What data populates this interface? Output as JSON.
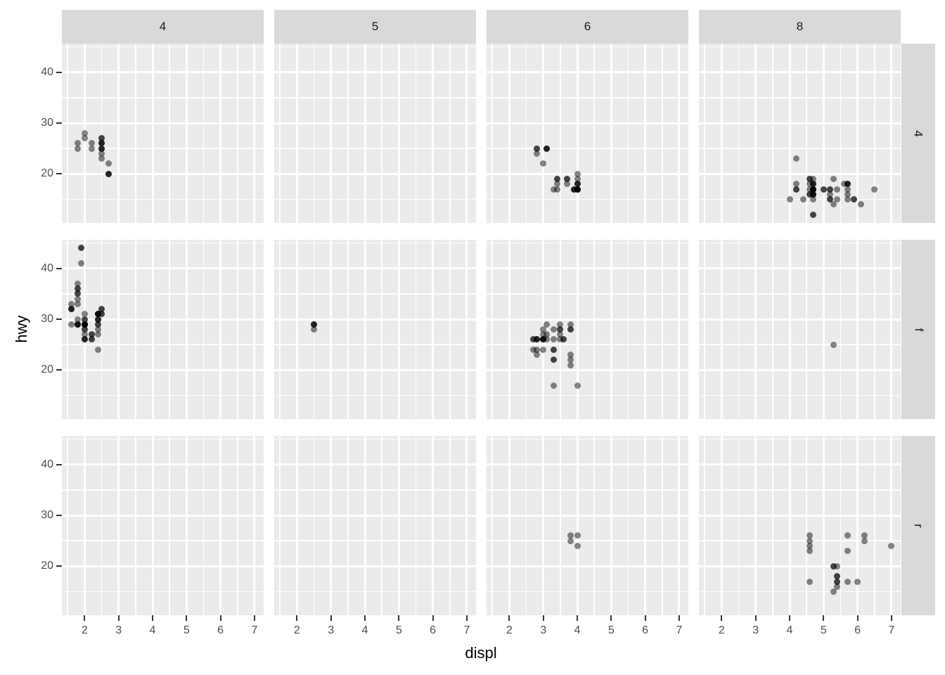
{
  "chart_data": {
    "type": "scatter",
    "title": "",
    "xlabel": "displ",
    "ylabel": "hwy",
    "facet_type": "grid",
    "col_strip_labels": [
      "4",
      "5",
      "6",
      "8"
    ],
    "row_strip_labels": [
      "4",
      "f",
      "r"
    ],
    "x_ticks": [
      2,
      3,
      4,
      5,
      6,
      7
    ],
    "y_ticks": [
      20,
      30,
      40
    ],
    "x_minor_gridlines": [
      1.5,
      2.5,
      3.5,
      4.5,
      5.5,
      6.5
    ],
    "y_minor_gridlines": [
      15,
      25,
      35,
      45
    ],
    "xlim": [
      1.33,
      7.27
    ],
    "ylim": [
      10.4,
      45.6
    ],
    "grid": "white major and minor gridlines on gray panel",
    "legend": "none",
    "panels": [
      {
        "col": "4",
        "row": "4",
        "points": [
          [
            1.8,
            26
          ],
          [
            1.8,
            25
          ],
          [
            2.0,
            28
          ],
          [
            2.0,
            27
          ],
          [
            2.2,
            26
          ],
          [
            2.2,
            25
          ],
          [
            2.5,
            26
          ],
          [
            2.5,
            24
          ],
          [
            2.5,
            26
          ],
          [
            2.5,
            23
          ],
          [
            2.5,
            25
          ],
          [
            2.5,
            27
          ],
          [
            2.5,
            25
          ],
          [
            2.5,
            27
          ],
          [
            2.5,
            25
          ],
          [
            2.5,
            26
          ],
          [
            2.7,
            20
          ],
          [
            2.7,
            20
          ],
          [
            2.7,
            20
          ],
          [
            2.7,
            22
          ]
        ]
      },
      {
        "col": "5",
        "row": "4",
        "points": []
      },
      {
        "col": "6",
        "row": "4",
        "points": [
          [
            2.8,
            25
          ],
          [
            2.8,
            25
          ],
          [
            3.1,
            25
          ],
          [
            3.1,
            25
          ],
          [
            2.8,
            24
          ],
          [
            3.1,
            25
          ],
          [
            3.0,
            22
          ],
          [
            3.3,
            17
          ],
          [
            3.4,
            17
          ],
          [
            3.4,
            19
          ],
          [
            3.4,
            19
          ],
          [
            3.4,
            18
          ],
          [
            3.7,
            19
          ],
          [
            3.7,
            18
          ],
          [
            3.7,
            19
          ],
          [
            3.9,
            17
          ],
          [
            3.9,
            17
          ],
          [
            3.9,
            17
          ],
          [
            4.0,
            17
          ],
          [
            4.0,
            17
          ],
          [
            4.0,
            18
          ],
          [
            4.0,
            17
          ],
          [
            4.0,
            17
          ],
          [
            4.0,
            19
          ],
          [
            4.0,
            18
          ],
          [
            4.0,
            18
          ],
          [
            4.0,
            20
          ],
          [
            4.0,
            17
          ]
        ]
      },
      {
        "col": "8",
        "row": "4",
        "points": [
          [
            4.2,
            23
          ],
          [
            5.3,
            14
          ],
          [
            5.3,
            19
          ],
          [
            5.7,
            15
          ],
          [
            6.5,
            17
          ],
          [
            4.7,
            19
          ],
          [
            4.7,
            16
          ],
          [
            4.7,
            18
          ],
          [
            5.2,
            15
          ],
          [
            5.2,
            17
          ],
          [
            4.7,
            17
          ],
          [
            4.7,
            17
          ],
          [
            4.7,
            18
          ],
          [
            5.2,
            16
          ],
          [
            5.7,
            18
          ],
          [
            5.9,
            15
          ],
          [
            4.7,
            15
          ],
          [
            4.7,
            16
          ],
          [
            4.7,
            17
          ],
          [
            4.7,
            17
          ],
          [
            4.7,
            16
          ],
          [
            4.7,
            12
          ],
          [
            5.2,
            17
          ],
          [
            5.2,
            15
          ],
          [
            5.7,
            16
          ],
          [
            5.9,
            15
          ],
          [
            4.7,
            17
          ],
          [
            4.7,
            12
          ],
          [
            5.7,
            18
          ],
          [
            6.1,
            14
          ],
          [
            4.0,
            15
          ],
          [
            4.2,
            18
          ],
          [
            4.4,
            15
          ],
          [
            4.6,
            18
          ],
          [
            4.6,
            19
          ],
          [
            5.0,
            17
          ],
          [
            4.6,
            19
          ],
          [
            5.0,
            17
          ],
          [
            4.2,
            17
          ],
          [
            4.2,
            17
          ],
          [
            4.6,
            16
          ],
          [
            4.6,
            16
          ],
          [
            4.6,
            17
          ],
          [
            5.4,
            15
          ],
          [
            5.4,
            17
          ],
          [
            5.6,
            18
          ],
          [
            4.7,
            17
          ],
          [
            4.7,
            16
          ],
          [
            5.7,
            18
          ],
          [
            4.7,
            17
          ],
          [
            4.7,
            17
          ],
          [
            4.7,
            18
          ],
          [
            5.7,
            17
          ]
        ]
      },
      {
        "col": "4",
        "row": "f",
        "points": [
          [
            1.8,
            29
          ],
          [
            1.8,
            29
          ],
          [
            2.0,
            31
          ],
          [
            2.0,
            30
          ],
          [
            2.4,
            30
          ],
          [
            2.4,
            29
          ],
          [
            2.4,
            24
          ],
          [
            1.6,
            33
          ],
          [
            1.6,
            32
          ],
          [
            1.6,
            32
          ],
          [
            1.6,
            29
          ],
          [
            1.6,
            32
          ],
          [
            1.8,
            34
          ],
          [
            1.8,
            36
          ],
          [
            1.8,
            36
          ],
          [
            2.0,
            29
          ],
          [
            2.4,
            31
          ],
          [
            2.4,
            30
          ],
          [
            2.4,
            28
          ],
          [
            2.4,
            31
          ],
          [
            2.5,
            31
          ],
          [
            2.5,
            32
          ],
          [
            2.0,
            26
          ],
          [
            2.0,
            27
          ],
          [
            2.0,
            30
          ],
          [
            2.0,
            29
          ],
          [
            2.4,
            29
          ],
          [
            2.4,
            27
          ],
          [
            2.5,
            31
          ],
          [
            2.5,
            32
          ],
          [
            2.2,
            26
          ],
          [
            2.2,
            27
          ],
          [
            2.4,
            30
          ],
          [
            2.4,
            31
          ],
          [
            2.2,
            26
          ],
          [
            2.2,
            27
          ],
          [
            2.4,
            31
          ],
          [
            2.4,
            31
          ],
          [
            1.8,
            30
          ],
          [
            1.8,
            33
          ],
          [
            1.8,
            35
          ],
          [
            1.8,
            35
          ],
          [
            1.8,
            37
          ],
          [
            2.0,
            29
          ],
          [
            2.0,
            29
          ],
          [
            2.0,
            28
          ],
          [
            2.0,
            29
          ],
          [
            1.9,
            44
          ],
          [
            2.0,
            29
          ],
          [
            2.0,
            26
          ],
          [
            2.0,
            29
          ],
          [
            2.0,
            29
          ],
          [
            1.9,
            44
          ],
          [
            1.9,
            41
          ],
          [
            2.0,
            29
          ],
          [
            2.0,
            26
          ],
          [
            1.8,
            29
          ],
          [
            1.8,
            29
          ],
          [
            2.0,
            28
          ],
          [
            2.0,
            29
          ]
        ]
      },
      {
        "col": "5",
        "row": "f",
        "points": [
          [
            2.5,
            29
          ],
          [
            2.5,
            29
          ],
          [
            2.5,
            28
          ],
          [
            2.5,
            29
          ]
        ]
      },
      {
        "col": "6",
        "row": "f",
        "points": [
          [
            2.7,
            26
          ],
          [
            2.7,
            26
          ],
          [
            2.7,
            24
          ],
          [
            2.8,
            26
          ],
          [
            2.8,
            26
          ],
          [
            3.1,
            27
          ],
          [
            2.8,
            26
          ],
          [
            3.6,
            26
          ],
          [
            2.8,
            24
          ],
          [
            2.8,
            23
          ],
          [
            3.0,
            26
          ],
          [
            3.0,
            26
          ],
          [
            3.5,
            28
          ],
          [
            3.0,
            24
          ],
          [
            3.3,
            22
          ],
          [
            3.3,
            22
          ],
          [
            3.3,
            24
          ],
          [
            3.3,
            24
          ],
          [
            3.3,
            17
          ],
          [
            3.8,
            22
          ],
          [
            3.8,
            21
          ],
          [
            3.8,
            23
          ],
          [
            4.0,
            17
          ],
          [
            3.1,
            26
          ],
          [
            3.5,
            29
          ],
          [
            3.6,
            26
          ],
          [
            3.3,
            26
          ],
          [
            3.5,
            27
          ],
          [
            3.5,
            26
          ],
          [
            3.0,
            26
          ],
          [
            3.0,
            28
          ],
          [
            3.5,
            28
          ],
          [
            3.0,
            26
          ],
          [
            3.0,
            27
          ],
          [
            3.3,
            28
          ],
          [
            3.1,
            29
          ],
          [
            3.8,
            28
          ],
          [
            3.8,
            28
          ],
          [
            3.8,
            29
          ]
        ]
      },
      {
        "col": "8",
        "row": "f",
        "points": [
          [
            5.3,
            25
          ]
        ]
      },
      {
        "col": "4",
        "row": "r",
        "points": []
      },
      {
        "col": "5",
        "row": "r",
        "points": []
      },
      {
        "col": "6",
        "row": "r",
        "points": [
          [
            3.8,
            26
          ],
          [
            3.8,
            25
          ],
          [
            4.0,
            26
          ],
          [
            4.0,
            24
          ]
        ]
      },
      {
        "col": "8",
        "row": "r",
        "points": [
          [
            5.3,
            20
          ],
          [
            5.3,
            15
          ],
          [
            5.3,
            20
          ],
          [
            5.7,
            17
          ],
          [
            6.0,
            17
          ],
          [
            5.7,
            26
          ],
          [
            5.7,
            23
          ],
          [
            6.2,
            26
          ],
          [
            6.2,
            25
          ],
          [
            7.0,
            24
          ],
          [
            4.6,
            17
          ],
          [
            5.4,
            17
          ],
          [
            5.4,
            18
          ],
          [
            4.6,
            24
          ],
          [
            4.6,
            25
          ],
          [
            4.6,
            26
          ],
          [
            4.6,
            23
          ],
          [
            5.4,
            20
          ],
          [
            5.4,
            17
          ],
          [
            5.4,
            16
          ],
          [
            5.4,
            18
          ]
        ]
      }
    ]
  },
  "style": {
    "panel_background": "#ebebeb",
    "strip_background": "#d9d9d9",
    "gridline_color": "#ffffff",
    "tick_mark_color": "#333333",
    "tick_label_color": "#4d4d4d",
    "title_color": "#000000",
    "point_color": "rgba(0,0,0,0.47)"
  }
}
